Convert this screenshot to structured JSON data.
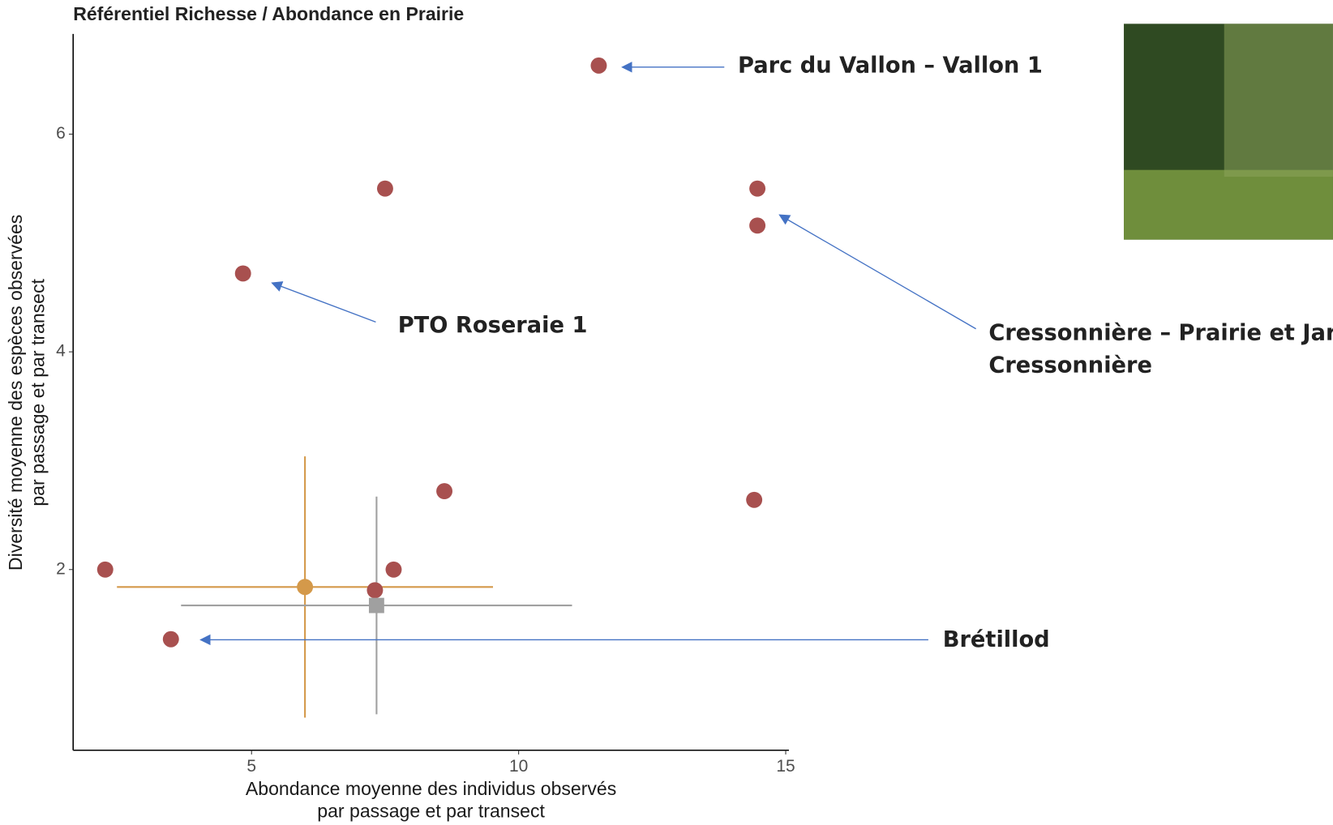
{
  "chart_data": {
    "type": "scatter",
    "title": "Référentiel Richesse / Abondance en Prairie",
    "x_label": [
      "Abondance moyenne des individus observés",
      "par passage et par transect"
    ],
    "y_label": [
      "Diversité moyenne des espèces observées",
      "par passage et par transect"
    ],
    "xlim": [
      1.66,
      15.06
    ],
    "ylim": [
      0.34,
      6.92
    ],
    "xticks": [
      5,
      10,
      15
    ],
    "yticks": [
      2,
      4,
      6
    ],
    "grid": false,
    "points": {
      "color": "#a8504f",
      "x": [
        11.5,
        7.5,
        14.47,
        14.47,
        4.84,
        8.61,
        14.41,
        2.26,
        7.66,
        7.31,
        3.49
      ],
      "y": [
        6.63,
        5.5,
        5.5,
        5.16,
        4.72,
        2.72,
        2.64,
        2.0,
        2.0,
        1.81,
        1.36
      ]
    },
    "references": [
      {
        "x": 6.0,
        "y": 1.84,
        "xerr": 3.52,
        "yerr": 1.2,
        "color": "#d4994a",
        "marker": "circle"
      },
      {
        "x": 7.34,
        "y": 1.67,
        "xerr": 3.66,
        "yerr": 1.0,
        "color": "#a0a0a0",
        "marker": "square"
      }
    ],
    "annotations": [
      {
        "text": [
          "Parc du Vallon – Vallon 1"
        ]
      },
      {
        "text": [
          "PTO Roseraie 1"
        ]
      },
      {
        "text": [
          "Cressonnière – Prairie et Jardin",
          "Cressonnière"
        ]
      },
      {
        "text": [
          "Brétillod"
        ]
      }
    ],
    "arrow_color": "#4472c4"
  }
}
